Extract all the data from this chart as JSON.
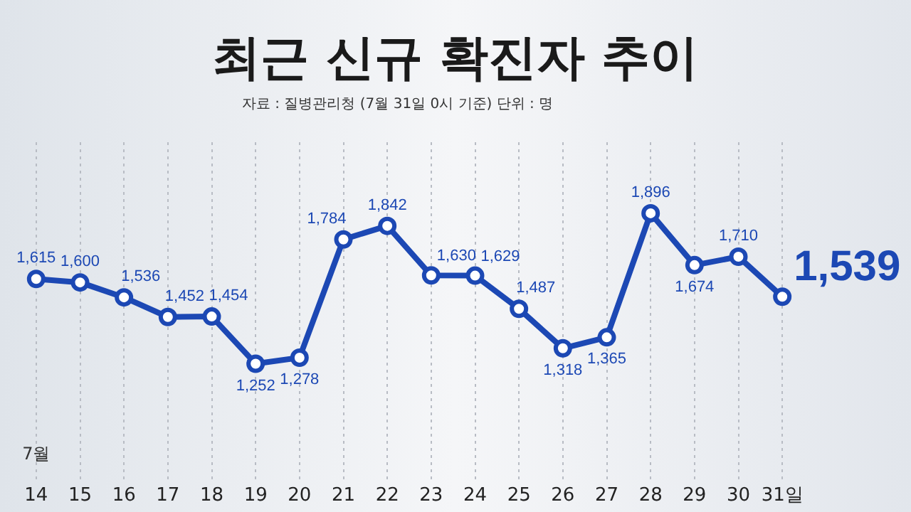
{
  "chart_data": {
    "type": "line",
    "title": "최근 신규 확진자 추이",
    "subtitle": "자료 : 질병관리청 (7월 31일 0시 기준)  단위 : 명",
    "categories": [
      "14",
      "15",
      "16",
      "17",
      "18",
      "19",
      "20",
      "21",
      "22",
      "23",
      "24",
      "25",
      "26",
      "27",
      "28",
      "29",
      "30",
      "31일"
    ],
    "series": [
      {
        "color": "#1c48b4",
        "values": [
          1615,
          1600,
          1536,
          1452,
          1454,
          1252,
          1278,
          1784,
          1842,
          1630,
          1629,
          1487,
          1318,
          1365,
          1896,
          1674,
          1710,
          1539
        ],
        "value_labels": [
          "1,615",
          "1,600",
          "1,536",
          "1,452",
          "1,454",
          "1,252",
          "1,278",
          "1,784",
          "1,842",
          "1,630",
          "1,629",
          "1,487",
          "1,318",
          "1,365",
          "1,896",
          "1,674",
          "1,710",
          "1,539"
        ]
      }
    ],
    "tick_labels": "x",
    "grid": "x",
    "legend": false,
    "marker": "circle",
    "line_style": "solid",
    "annotations": [
      "7월"
    ]
  }
}
